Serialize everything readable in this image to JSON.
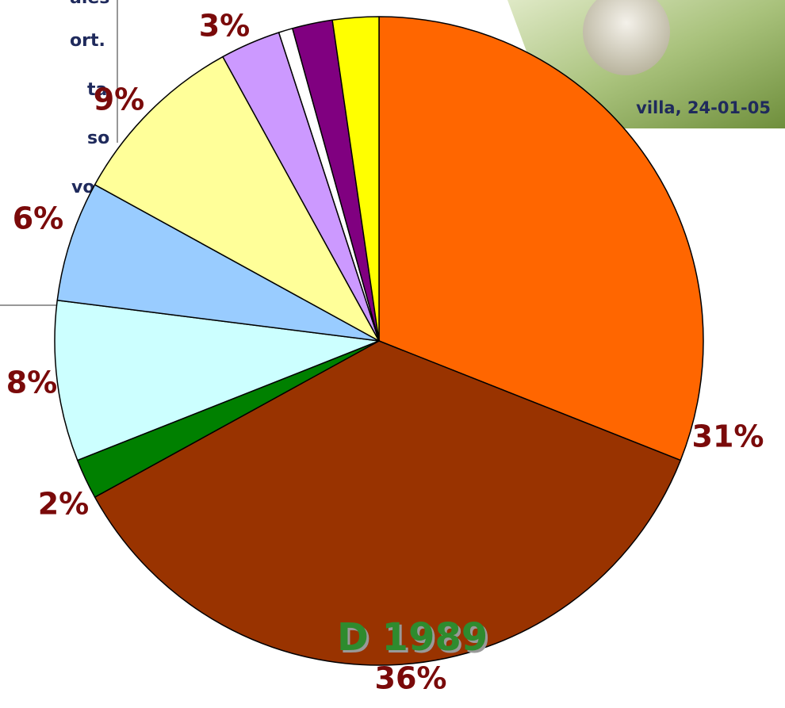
{
  "chart_data": {
    "type": "pie",
    "values": [
      31,
      36,
      2,
      8,
      6,
      9,
      3,
      0.7,
      2,
      2.3
    ],
    "value_labels": [
      "31%",
      "36%",
      "2%",
      "8%",
      "6%",
      "9%",
      "3%",
      null,
      null,
      null
    ],
    "colors": [
      "#FF6600",
      "#993300",
      "#008000",
      "#CCFFFF",
      "#99CCFF",
      "#FFFF99",
      "#CC99FF",
      "#FFFFFF",
      "#800080",
      "#FFFF00"
    ]
  },
  "text_box": {
    "lines": [
      "ales",
      "ort.",
      "ta",
      "so",
      "vos"
    ]
  },
  "photo_caption": "villa, 24-01-05",
  "caption": "D 1989"
}
